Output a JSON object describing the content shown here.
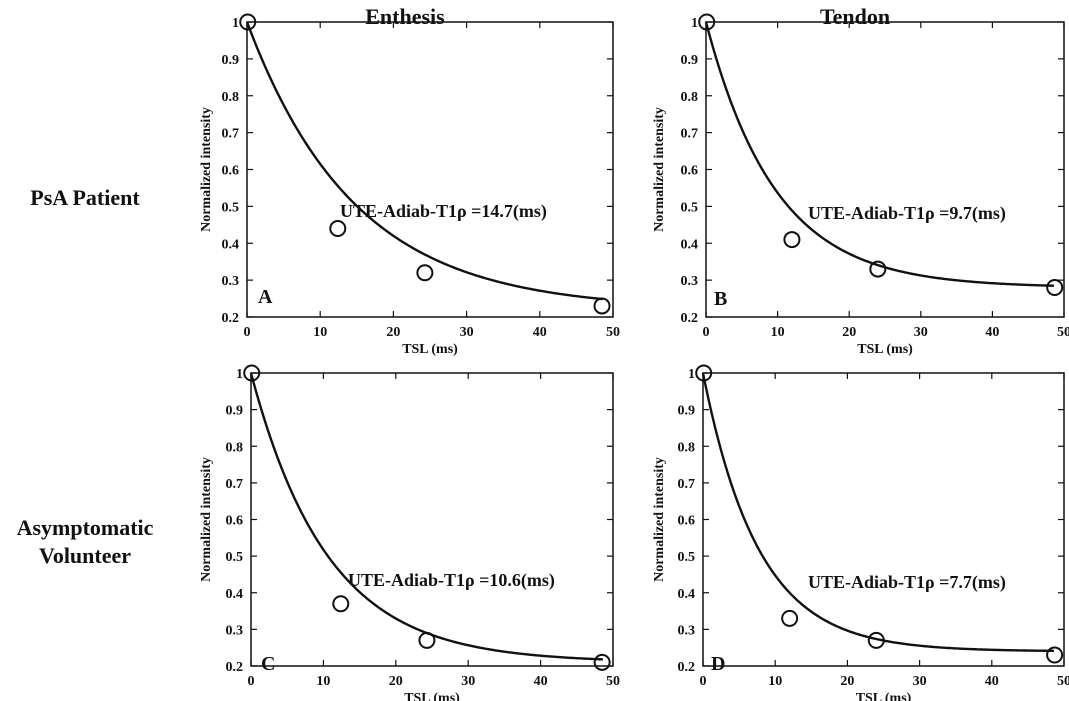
{
  "figure": {
    "col_labels": [
      "Enthesis",
      "Tendon"
    ],
    "row_labels": [
      [
        "PsA Patient"
      ],
      [
        "Asymptomatic",
        "Volunteer"
      ]
    ]
  },
  "chart_data": [
    {
      "type": "scatter",
      "panel_label": "A",
      "xlabel": "TSL (ms)",
      "ylabel": "Normalized intensity",
      "xlim": [
        0,
        50
      ],
      "ylim": [
        0.2,
        1
      ],
      "x_ticks": [
        0,
        10,
        20,
        30,
        40,
        50
      ],
      "y_ticks": [
        0.2,
        0.3,
        0.4,
        0.5,
        0.6,
        0.7,
        0.8,
        0.9,
        1
      ],
      "x": [
        0.1,
        12.4,
        24.3,
        48.5
      ],
      "y": [
        1.0,
        0.44,
        0.32,
        0.23
      ],
      "fit": {
        "t1rho_ms": 14.7,
        "plateau": 0.22
      },
      "annotation": "UTE-Adiab-T1ρ =14.7(ms)"
    },
    {
      "type": "scatter",
      "panel_label": "B",
      "xlabel": "TSL (ms)",
      "ylabel": "Normalized intensity",
      "xlim": [
        0,
        50
      ],
      "ylim": [
        0.2,
        1
      ],
      "x_ticks": [
        0,
        10,
        20,
        30,
        40,
        50
      ],
      "y_ticks": [
        0.2,
        0.3,
        0.4,
        0.5,
        0.6,
        0.7,
        0.8,
        0.9,
        1
      ],
      "x": [
        0.1,
        12.0,
        24.0,
        48.7
      ],
      "y": [
        1.0,
        0.41,
        0.33,
        0.28
      ],
      "fit": {
        "t1rho_ms": 9.7,
        "plateau": 0.28
      },
      "annotation": "UTE-Adiab-T1ρ =9.7(ms)"
    },
    {
      "type": "scatter",
      "panel_label": "C",
      "xlabel": "TSL (ms)",
      "ylabel": "Normalized intensity",
      "xlim": [
        0,
        50
      ],
      "ylim": [
        0.2,
        1
      ],
      "x_ticks": [
        0,
        10,
        20,
        30,
        40,
        50
      ],
      "y_ticks": [
        0.2,
        0.3,
        0.4,
        0.5,
        0.6,
        0.7,
        0.8,
        0.9,
        1
      ],
      "x": [
        0.1,
        12.4,
        24.3,
        48.5
      ],
      "y": [
        1.0,
        0.37,
        0.27,
        0.21
      ],
      "fit": {
        "t1rho_ms": 10.6,
        "plateau": 0.21
      },
      "annotation": "UTE-Adiab-T1ρ =10.6(ms)"
    },
    {
      "type": "scatter",
      "panel_label": "D",
      "xlabel": "TSL (ms)",
      "ylabel": "Normalized intensity",
      "xlim": [
        0,
        50
      ],
      "ylim": [
        0.2,
        1
      ],
      "x_ticks": [
        0,
        10,
        20,
        30,
        40,
        50
      ],
      "y_ticks": [
        0.2,
        0.3,
        0.4,
        0.5,
        0.6,
        0.7,
        0.8,
        0.9,
        1
      ],
      "x": [
        0.1,
        12.0,
        24.0,
        48.7
      ],
      "y": [
        1.0,
        0.33,
        0.27,
        0.23
      ],
      "fit": {
        "t1rho_ms": 7.7,
        "plateau": 0.24
      },
      "annotation": "UTE-Adiab-T1ρ =7.7(ms)"
    }
  ]
}
